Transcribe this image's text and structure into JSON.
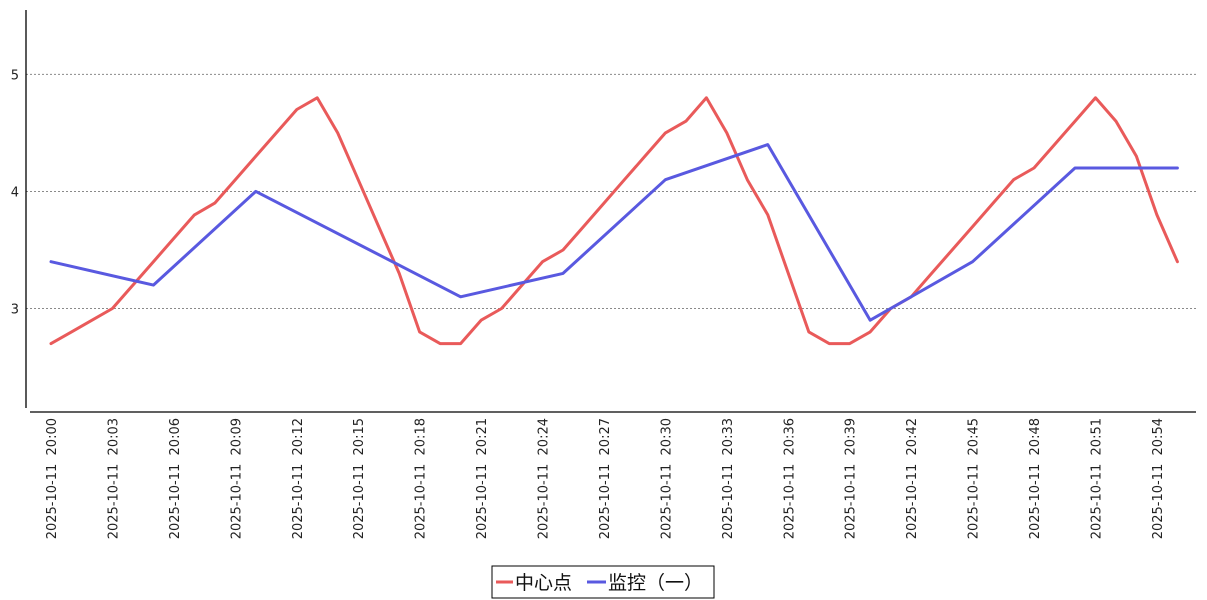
{
  "chart_data": {
    "type": "line",
    "title": "",
    "xlabel": "",
    "ylabel": "",
    "ylim": [
      2.15,
      5.55
    ],
    "yticks": [
      3,
      4,
      5
    ],
    "grid": "horizontal dotted",
    "legend_position": "bottom-center",
    "x": [
      "2025-10-11 20:00",
      "2025-10-11 20:01",
      "2025-10-11 20:02",
      "2025-10-11 20:03",
      "2025-10-11 20:04",
      "2025-10-11 20:05",
      "2025-10-11 20:06",
      "2025-10-11 20:07",
      "2025-10-11 20:08",
      "2025-10-11 20:09",
      "2025-10-11 20:10",
      "2025-10-11 20:11",
      "2025-10-11 20:12",
      "2025-10-11 20:13",
      "2025-10-11 20:14",
      "2025-10-11 20:15",
      "2025-10-11 20:16",
      "2025-10-11 20:17",
      "2025-10-11 20:18",
      "2025-10-11 20:19",
      "2025-10-11 20:20",
      "2025-10-11 20:21",
      "2025-10-11 20:22",
      "2025-10-11 20:23",
      "2025-10-11 20:24",
      "2025-10-11 20:25",
      "2025-10-11 20:26",
      "2025-10-11 20:27",
      "2025-10-11 20:28",
      "2025-10-11 20:29",
      "2025-10-11 20:30",
      "2025-10-11 20:31",
      "2025-10-11 20:32",
      "2025-10-11 20:33",
      "2025-10-11 20:34",
      "2025-10-11 20:35",
      "2025-10-11 20:36",
      "2025-10-11 20:37",
      "2025-10-11 20:38",
      "2025-10-11 20:39",
      "2025-10-11 20:40",
      "2025-10-11 20:41",
      "2025-10-11 20:42",
      "2025-10-11 20:43",
      "2025-10-11 20:44",
      "2025-10-11 20:45",
      "2025-10-11 20:46",
      "2025-10-11 20:47",
      "2025-10-11 20:48",
      "2025-10-11 20:49",
      "2025-10-11 20:50",
      "2025-10-11 20:51",
      "2025-10-11 20:52",
      "2025-10-11 20:53",
      "2025-10-11 20:54",
      "2025-10-11 20:55",
      "2025-10-11 20:56"
    ],
    "x_tick_labels": [
      "2025-10-11 20:00",
      "2025-10-11 20:03",
      "2025-10-11 20:06",
      "2025-10-11 20:09",
      "2025-10-11 20:12",
      "2025-10-11 20:15",
      "2025-10-11 20:18",
      "2025-10-11 20:21",
      "2025-10-11 20:24",
      "2025-10-11 20:27",
      "2025-10-11 20:30",
      "2025-10-11 20:33",
      "2025-10-11 20:36",
      "2025-10-11 20:39",
      "2025-10-11 20:42",
      "2025-10-11 20:45",
      "2025-10-11 20:48",
      "2025-10-11 20:51",
      "2025-10-11 20:54"
    ],
    "series": [
      {
        "name": "中心点",
        "color": "#e95a5a",
        "points": [
          [
            "2025-10-11 20:00",
            2.7
          ],
          [
            "2025-10-11 20:01",
            2.8
          ],
          [
            "2025-10-11 20:02",
            2.9
          ],
          [
            "2025-10-11 20:03",
            3.0
          ],
          [
            "2025-10-11 20:04",
            3.2
          ],
          [
            "2025-10-11 20:05",
            3.4
          ],
          [
            "2025-10-11 20:06",
            3.6
          ],
          [
            "2025-10-11 20:07",
            3.8
          ],
          [
            "2025-10-11 20:08",
            3.9
          ],
          [
            "2025-10-11 20:09",
            4.1
          ],
          [
            "2025-10-11 20:10",
            4.3
          ],
          [
            "2025-10-11 20:11",
            4.5
          ],
          [
            "2025-10-11 20:12",
            4.7
          ],
          [
            "2025-10-11 20:13",
            4.8
          ],
          [
            "2025-10-11 20:14",
            4.5
          ],
          [
            "2025-10-11 20:15",
            4.1
          ],
          [
            "2025-10-11 20:16",
            3.7
          ],
          [
            "2025-10-11 20:17",
            3.3
          ],
          [
            "2025-10-11 20:18",
            2.8
          ],
          [
            "2025-10-11 20:19",
            2.7
          ],
          [
            "2025-10-11 20:20",
            2.7
          ],
          [
            "2025-10-11 20:21",
            2.9
          ],
          [
            "2025-10-11 20:22",
            3.0
          ],
          [
            "2025-10-11 20:23",
            3.2
          ],
          [
            "2025-10-11 20:24",
            3.4
          ],
          [
            "2025-10-11 20:25",
            3.5
          ],
          [
            "2025-10-11 20:26",
            3.7
          ],
          [
            "2025-10-11 20:27",
            3.9
          ],
          [
            "2025-10-11 20:28",
            4.1
          ],
          [
            "2025-10-11 20:29",
            4.3
          ],
          [
            "2025-10-11 20:30",
            4.5
          ],
          [
            "2025-10-11 20:31",
            4.6
          ],
          [
            "2025-10-11 20:32",
            4.8
          ],
          [
            "2025-10-11 20:33",
            4.5
          ],
          [
            "2025-10-11 20:34",
            4.1
          ],
          [
            "2025-10-11 20:35",
            3.8
          ],
          [
            "2025-10-11 20:36",
            3.3
          ],
          [
            "2025-10-11 20:37",
            2.8
          ],
          [
            "2025-10-11 20:38",
            2.7
          ],
          [
            "2025-10-11 20:39",
            2.7
          ],
          [
            "2025-10-11 20:40",
            2.8
          ],
          [
            "2025-10-11 20:41",
            3.0
          ],
          [
            "2025-10-11 20:42",
            3.1
          ],
          [
            "2025-10-11 20:43",
            3.3
          ],
          [
            "2025-10-11 20:44",
            3.5
          ],
          [
            "2025-10-11 20:45",
            3.7
          ],
          [
            "2025-10-11 20:46",
            3.9
          ],
          [
            "2025-10-11 20:47",
            4.1
          ],
          [
            "2025-10-11 20:48",
            4.2
          ],
          [
            "2025-10-11 20:49",
            4.4
          ],
          [
            "2025-10-11 20:50",
            4.6
          ],
          [
            "2025-10-11 20:51",
            4.8
          ],
          [
            "2025-10-11 20:52",
            4.6
          ],
          [
            "2025-10-11 20:53",
            4.3
          ],
          [
            "2025-10-11 20:54",
            3.8
          ],
          [
            "2025-10-11 20:55",
            3.4
          ]
        ]
      },
      {
        "name": "监控（一）",
        "color": "#5959e0",
        "points": [
          [
            "2025-10-11 20:00",
            3.4
          ],
          [
            "2025-10-11 20:05",
            3.2
          ],
          [
            "2025-10-11 20:10",
            4.0
          ],
          [
            "2025-10-11 20:20",
            3.1
          ],
          [
            "2025-10-11 20:25",
            3.3
          ],
          [
            "2025-10-11 20:30",
            4.1
          ],
          [
            "2025-10-11 20:35",
            4.4
          ],
          [
            "2025-10-11 20:40",
            2.9
          ],
          [
            "2025-10-11 20:45",
            3.4
          ],
          [
            "2025-10-11 20:50",
            4.2
          ],
          [
            "2025-10-11 20:55",
            4.2
          ]
        ]
      }
    ]
  }
}
